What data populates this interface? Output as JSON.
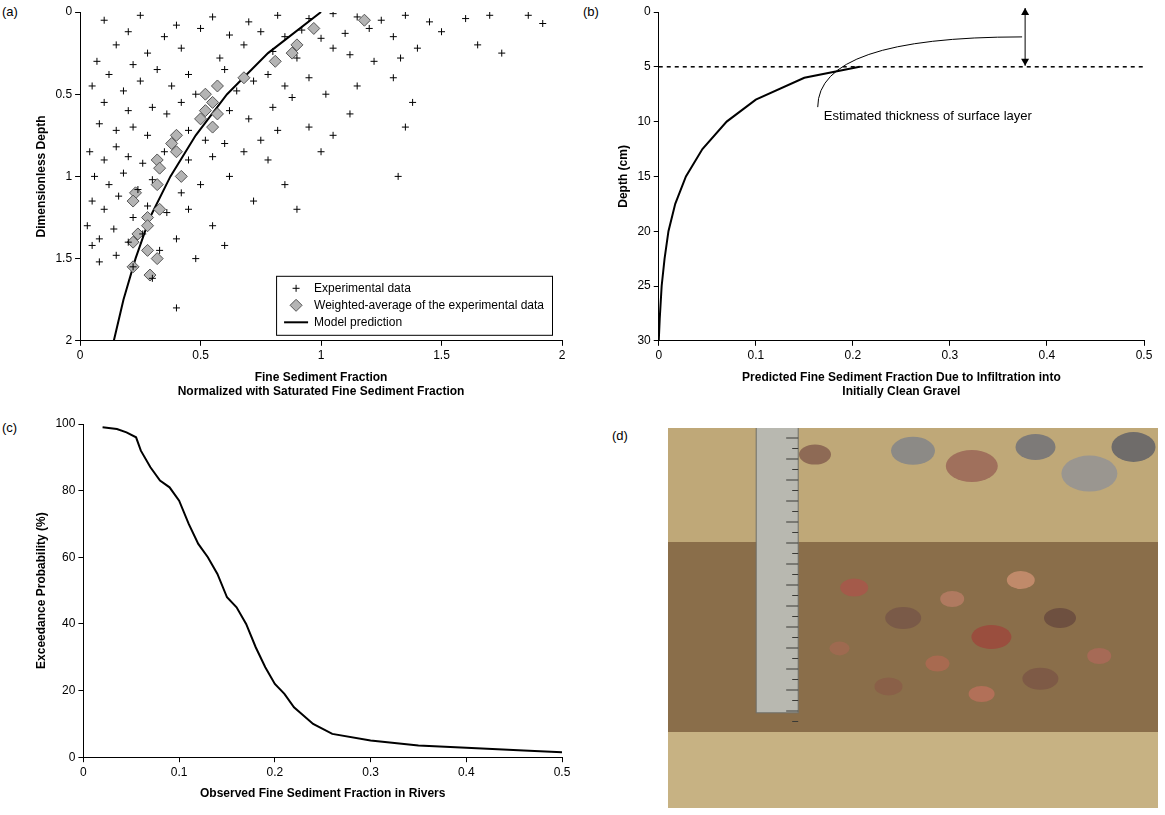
{
  "chart_data": [
    {
      "type": "scatter",
      "panel": "(a)",
      "x_label": [
        "Fine Sediment Fraction",
        "Normalized with Saturated Fine Sediment Fraction"
      ],
      "y_label": "Dimensionless Depth",
      "xlim": [
        0,
        2
      ],
      "xticks": [
        0,
        0.5,
        1,
        1.5,
        2
      ],
      "ylim": [
        2,
        0
      ],
      "yticks": [
        0,
        0.5,
        1,
        1.5,
        2
      ],
      "grid": false,
      "legend": "lower right",
      "series": [
        {
          "name": "Experimental data",
          "type": "scatter",
          "marker": "cross",
          "color": "#000000",
          "x": [
            0.1,
            0.25,
            0.4,
            0.55,
            0.7,
            0.82,
            0.95,
            1.05,
            1.15,
            1.25,
            1.35,
            1.45,
            1.6,
            1.7,
            1.86,
            1.92,
            0.2,
            0.35,
            0.5,
            0.62,
            0.75,
            0.85,
            0.92,
            1.0,
            1.1,
            1.2,
            1.3,
            1.5,
            1.65,
            1.75,
            1.4,
            0.15,
            0.28,
            0.42,
            0.58,
            0.68,
            0.8,
            0.9,
            1.05,
            1.12,
            1.22,
            1.33,
            0.07,
            0.22,
            0.05,
            0.12,
            0.18,
            0.25,
            0.32,
            0.38,
            0.45,
            0.48,
            0.6,
            0.65,
            0.72,
            0.78,
            0.85,
            0.95,
            1.02,
            1.15,
            1.3,
            1.38,
            0.1,
            0.2,
            0.3,
            0.36,
            0.42,
            0.62,
            0.7,
            0.8,
            0.88,
            1.12,
            1.35,
            0.08,
            0.15,
            0.22,
            0.28,
            0.45,
            0.52,
            0.6,
            0.75,
            0.82,
            0.95,
            1.05,
            0.04,
            0.1,
            0.15,
            0.2,
            0.26,
            0.35,
            0.45,
            0.55,
            0.68,
            0.78,
            1.0,
            0.06,
            0.12,
            0.18,
            0.24,
            0.3,
            0.42,
            0.5,
            0.62,
            0.85,
            1.32,
            0.05,
            0.1,
            0.16,
            0.22,
            0.28,
            0.36,
            0.45,
            0.55,
            0.72,
            0.9,
            0.03,
            0.08,
            0.14,
            0.2,
            0.26,
            0.33,
            0.4,
            0.48,
            0.6,
            0.08,
            0.15,
            0.22,
            0.3,
            0.05,
            0.4
          ],
          "y": [
            0.05,
            0.02,
            0.08,
            0.03,
            0.06,
            0.02,
            0.04,
            0.01,
            0.03,
            0.05,
            0.02,
            0.06,
            0.04,
            0.02,
            0.02,
            0.07,
            0.12,
            0.15,
            0.1,
            0.14,
            0.12,
            0.15,
            0.11,
            0.16,
            0.13,
            0.1,
            0.15,
            0.12,
            0.2,
            0.25,
            0.22,
            0.2,
            0.25,
            0.22,
            0.28,
            0.2,
            0.24,
            0.28,
            0.22,
            0.26,
            0.3,
            0.28,
            0.3,
            0.32,
            0.45,
            0.38,
            0.48,
            0.42,
            0.35,
            0.45,
            0.38,
            0.5,
            0.35,
            0.48,
            0.42,
            0.38,
            0.45,
            0.4,
            0.5,
            0.45,
            0.4,
            0.55,
            0.55,
            0.6,
            0.58,
            0.62,
            0.55,
            0.6,
            0.65,
            0.58,
            0.52,
            0.62,
            0.7,
            0.68,
            0.72,
            0.7,
            0.75,
            0.72,
            0.78,
            0.8,
            0.78,
            0.72,
            0.7,
            0.75,
            0.85,
            0.9,
            0.82,
            0.88,
            0.92,
            0.85,
            0.9,
            0.88,
            0.85,
            0.9,
            0.85,
            1.0,
            1.05,
            0.98,
            1.08,
            1.02,
            1.1,
            1.05,
            1.0,
            1.05,
            1.0,
            1.15,
            1.2,
            1.12,
            1.25,
            1.18,
            1.22,
            1.2,
            1.3,
            1.15,
            1.2,
            1.3,
            1.38,
            1.32,
            1.4,
            1.35,
            1.45,
            1.38,
            1.5,
            1.42,
            1.52,
            1.48,
            1.55,
            1.62,
            1.42,
            1.8
          ]
        },
        {
          "name": "Weighted-average of the experimental data",
          "type": "scatter",
          "marker": "diamond",
          "color": "#b4b4b4",
          "x": [
            1.18,
            0.97,
            0.9,
            0.88,
            0.81,
            0.68,
            0.57,
            0.52,
            0.55,
            0.52,
            0.57,
            0.5,
            0.55,
            0.4,
            0.38,
            0.4,
            0.32,
            0.33,
            0.42,
            0.32,
            0.23,
            0.22,
            0.33,
            0.28,
            0.28,
            0.24,
            0.22,
            0.28,
            0.32,
            0.22,
            0.29
          ],
          "y": [
            0.05,
            0.1,
            0.2,
            0.25,
            0.3,
            0.4,
            0.45,
            0.5,
            0.55,
            0.6,
            0.62,
            0.65,
            0.7,
            0.75,
            0.8,
            0.85,
            0.9,
            0.95,
            1.0,
            1.05,
            1.1,
            1.15,
            1.2,
            1.25,
            1.3,
            1.35,
            1.4,
            1.45,
            1.5,
            1.55,
            1.6
          ]
        },
        {
          "name": "Model prediction",
          "type": "line",
          "line_style": "solid",
          "color": "#000000",
          "x": [
            1,
            0.78,
            0.61,
            0.48,
            0.375,
            0.29,
            0.23,
            0.18,
            0.14
          ],
          "y": [
            0,
            0.25,
            0.5,
            0.75,
            1,
            1.25,
            1.5,
            1.75,
            2
          ]
        }
      ]
    },
    {
      "type": "line",
      "panel": "(b)",
      "x_label": [
        "Predicted Fine Sediment Fraction Due to Infiltration into",
        "Initially Clean Gravel"
      ],
      "y_label": "Depth (cm)",
      "xlim": [
        0,
        0.5
      ],
      "xticks": [
        0,
        0.1,
        0.2,
        0.3,
        0.4,
        0.5
      ],
      "ylim": [
        30,
        0
      ],
      "yticks": [
        0,
        5,
        10,
        15,
        20,
        25,
        30
      ],
      "grid": false,
      "hlines": [
        {
          "value": 5,
          "line_style": "dashed"
        }
      ],
      "annotation": "Estimated thickness of surface layer",
      "series": [
        {
          "type": "line",
          "line_style": "solid",
          "color": "#000000",
          "x": [
            0.207,
            0.15,
            0.1,
            0.07,
            0.045,
            0.028,
            0.017,
            0.01,
            0.006,
            0.003,
            0.001,
            0
          ],
          "y": [
            5,
            6,
            8,
            10,
            12.5,
            15,
            17.5,
            20,
            22.5,
            25,
            28,
            30
          ]
        }
      ]
    },
    {
      "type": "line",
      "panel": "(c)",
      "x_label": "Observed Fine Sediment Fraction in Rivers",
      "y_label": "Exceedance Probability (%)",
      "xlim": [
        0,
        0.5
      ],
      "xticks": [
        0,
        0.1,
        0.2,
        0.3,
        0.4,
        0.5
      ],
      "ylim": [
        0,
        100
      ],
      "yticks": [
        0,
        20,
        40,
        60,
        80,
        100
      ],
      "grid": false,
      "series": [
        {
          "type": "line",
          "line_style": "solid",
          "color": "#000000",
          "x": [
            0.02,
            0.035,
            0.045,
            0.055,
            0.06,
            0.07,
            0.08,
            0.09,
            0.1,
            0.11,
            0.12,
            0.13,
            0.14,
            0.15,
            0.16,
            0.17,
            0.18,
            0.19,
            0.2,
            0.21,
            0.22,
            0.24,
            0.26,
            0.3,
            0.35,
            0.4,
            0.46,
            0.5
          ],
          "y": [
            99,
            98.5,
            97.5,
            96,
            92,
            87,
            83,
            81,
            77,
            70,
            64,
            60,
            55,
            48,
            45,
            40,
            33,
            27,
            22,
            19,
            15,
            10,
            7,
            5,
            3.5,
            2.8,
            2,
            1.5
          ]
        }
      ]
    },
    {
      "type": "image",
      "panel": "(d)"
    }
  ]
}
